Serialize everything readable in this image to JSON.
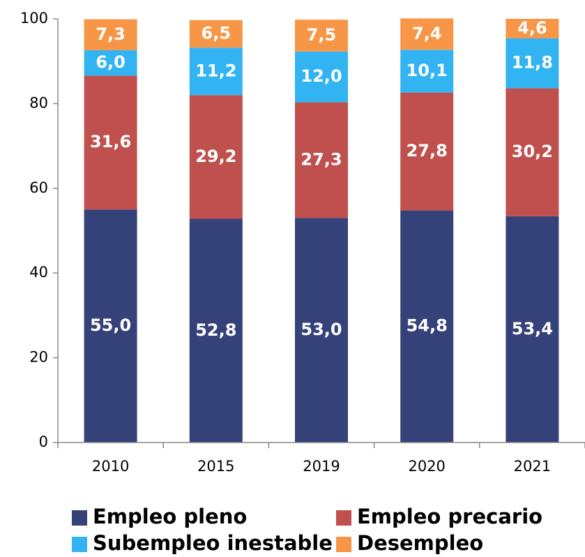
{
  "chart_data": {
    "type": "stacked_bar",
    "categories": [
      "2010",
      "2015",
      "2019",
      "2020",
      "2021"
    ],
    "series": [
      {
        "name": "Empleo pleno",
        "color": "#35427a",
        "values": [
          55.0,
          52.8,
          53.0,
          54.8,
          53.4
        ],
        "value_labels": [
          "55,0",
          "52,8",
          "53,0",
          "54,8",
          "53,4"
        ]
      },
      {
        "name": "Empleo precario",
        "color": "#c0504d",
        "values": [
          31.6,
          29.2,
          27.3,
          27.8,
          30.2
        ],
        "value_labels": [
          "31,6",
          "29,2",
          "27,3",
          "27,8",
          "30,2"
        ]
      },
      {
        "name": "Subempleo inestable",
        "color": "#33b4f2",
        "values": [
          6.0,
          11.2,
          12.0,
          10.1,
          11.8
        ],
        "value_labels": [
          "6,0",
          "11,2",
          "12,0",
          "10,1",
          "11,8"
        ]
      },
      {
        "name": "Desempleo",
        "color": "#f79646",
        "values": [
          7.3,
          6.5,
          7.5,
          7.4,
          4.6
        ],
        "value_labels": [
          "7,3",
          "6,5",
          "7,5",
          "7,4",
          "4,6"
        ]
      }
    ],
    "ylim": [
      0,
      100
    ],
    "yticks": [
      0,
      20,
      40,
      60,
      80,
      100
    ],
    "grid": false,
    "legend": "bottom"
  }
}
